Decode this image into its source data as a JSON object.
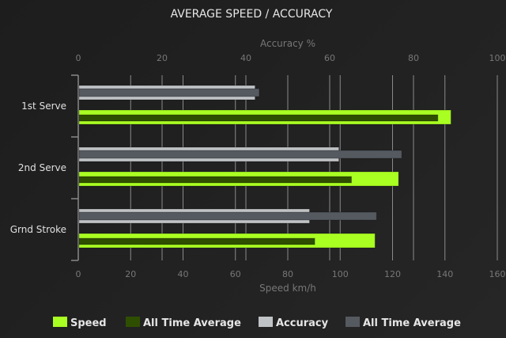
{
  "chart_data": {
    "type": "bar",
    "orientation": "horizontal",
    "title": "AVERAGE SPEED / ACCURACY",
    "categories": [
      "1st Serve",
      "2nd Serve",
      "Grnd Stroke"
    ],
    "x_bottom": {
      "label": "Speed km/h",
      "range": [
        0,
        160
      ],
      "ticks": [
        0,
        20,
        40,
        60,
        80,
        100,
        120,
        140,
        160
      ]
    },
    "x_top": {
      "label": "Accuracy %",
      "range": [
        0,
        100
      ],
      "ticks": [
        0,
        20,
        40,
        60,
        80,
        100
      ]
    },
    "grid": true,
    "legend_position": "bottom",
    "series": [
      {
        "name": "Speed",
        "axis": "bottom",
        "color": "#aaff22",
        "values": [
          142,
          122,
          113
        ]
      },
      {
        "name": "All Time Average",
        "axis": "bottom",
        "color": "#2f4f00",
        "values": [
          137,
          104,
          90
        ]
      },
      {
        "name": "Accuracy",
        "axis": "top",
        "color": "#c0c3c5",
        "values": [
          42,
          62,
          55
        ]
      },
      {
        "name": "All Time Average",
        "axis": "top",
        "color": "#555960",
        "values": [
          43,
          77,
          71
        ]
      }
    ]
  }
}
